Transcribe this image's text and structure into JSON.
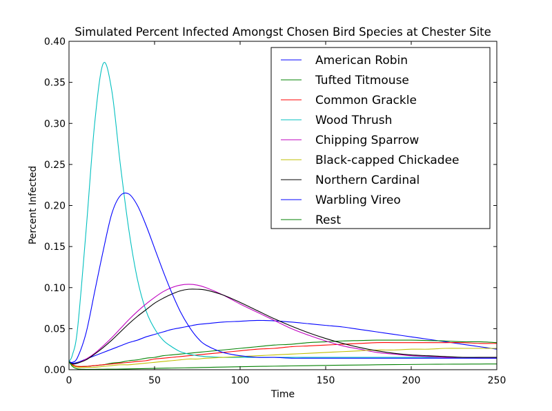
{
  "chart_data": {
    "type": "line",
    "title": "Simulated Percent Infected Amongst Chosen Bird Species at Chester Site",
    "xlabel": "Time",
    "ylabel": "Percent Infected",
    "xlim": [
      0,
      250
    ],
    "ylim": [
      0,
      0.4
    ],
    "xticks": [
      "0",
      "50",
      "100",
      "150",
      "200",
      "250"
    ],
    "yticks": [
      "0.00",
      "0.05",
      "0.10",
      "0.15",
      "0.20",
      "0.25",
      "0.30",
      "0.35",
      "0.40"
    ],
    "grid": false,
    "legend_position": "top-right",
    "x": [
      0,
      2,
      5,
      10,
      15,
      20,
      25,
      30,
      35,
      40,
      45,
      50,
      55,
      60,
      65,
      70,
      75,
      80,
      90,
      100,
      110,
      120,
      130,
      140,
      150,
      160,
      170,
      180,
      190,
      200,
      210,
      220,
      230,
      240,
      250
    ],
    "series": [
      {
        "name": "American Robin",
        "color": "#0000ff",
        "values": [
          0.01,
          0.008,
          0.009,
          0.013,
          0.017,
          0.021,
          0.025,
          0.029,
          0.033,
          0.036,
          0.04,
          0.043,
          0.046,
          0.049,
          0.051,
          0.053,
          0.055,
          0.056,
          0.058,
          0.059,
          0.06,
          0.0595,
          0.058,
          0.056,
          0.054,
          0.052,
          0.049,
          0.046,
          0.043,
          0.04,
          0.037,
          0.034,
          0.031,
          0.028,
          0.025
        ]
      },
      {
        "name": "Tufted Titmouse",
        "color": "#008000",
        "values": [
          0.01,
          0.006,
          0.004,
          0.004,
          0.005,
          0.006,
          0.008,
          0.009,
          0.011,
          0.012,
          0.014,
          0.015,
          0.017,
          0.018,
          0.019,
          0.02,
          0.021,
          0.022,
          0.024,
          0.026,
          0.028,
          0.03,
          0.031,
          0.033,
          0.034,
          0.035,
          0.0355,
          0.036,
          0.036,
          0.036,
          0.0355,
          0.035,
          0.034,
          0.034,
          0.033
        ]
      },
      {
        "name": "Common Grackle",
        "color": "#ff0000",
        "values": [
          0.01,
          0.006,
          0.004,
          0.004,
          0.005,
          0.006,
          0.007,
          0.008,
          0.009,
          0.01,
          0.011,
          0.013,
          0.014,
          0.015,
          0.016,
          0.017,
          0.018,
          0.019,
          0.021,
          0.023,
          0.025,
          0.026,
          0.028,
          0.029,
          0.03,
          0.031,
          0.032,
          0.033,
          0.033,
          0.033,
          0.033,
          0.033,
          0.033,
          0.032,
          0.032
        ]
      },
      {
        "name": "Wood Thrush",
        "color": "#00bfbf",
        "values": [
          0.01,
          0.018,
          0.05,
          0.17,
          0.3,
          0.373,
          0.34,
          0.25,
          0.17,
          0.11,
          0.072,
          0.05,
          0.036,
          0.028,
          0.022,
          0.019,
          0.017,
          0.016,
          0.015,
          0.015,
          0.015,
          0.015,
          0.015,
          0.015,
          0.015,
          0.015,
          0.015,
          0.015,
          0.015,
          0.015,
          0.015,
          0.015,
          0.015,
          0.015,
          0.015
        ]
      },
      {
        "name": "Chipping Sparrow",
        "color": "#bf00bf",
        "values": [
          0.01,
          0.007,
          0.008,
          0.013,
          0.02,
          0.029,
          0.039,
          0.05,
          0.061,
          0.071,
          0.08,
          0.088,
          0.095,
          0.1,
          0.103,
          0.104,
          0.103,
          0.1,
          0.091,
          0.08,
          0.07,
          0.06,
          0.05,
          0.042,
          0.035,
          0.029,
          0.025,
          0.021,
          0.019,
          0.017,
          0.016,
          0.015,
          0.015,
          0.014,
          0.014
        ]
      },
      {
        "name": "Black-capped Chickadee",
        "color": "#bfbf00",
        "values": [
          0.01,
          0.005,
          0.003,
          0.003,
          0.003,
          0.004,
          0.005,
          0.006,
          0.006,
          0.007,
          0.008,
          0.009,
          0.01,
          0.011,
          0.012,
          0.013,
          0.013,
          0.014,
          0.015,
          0.016,
          0.017,
          0.018,
          0.019,
          0.02,
          0.021,
          0.022,
          0.023,
          0.024,
          0.024,
          0.025,
          0.025,
          0.026,
          0.026,
          0.026,
          0.026
        ]
      },
      {
        "name": "Northern Cardinal",
        "color": "#000000",
        "values": [
          0.01,
          0.007,
          0.008,
          0.012,
          0.019,
          0.027,
          0.036,
          0.046,
          0.056,
          0.065,
          0.073,
          0.081,
          0.087,
          0.092,
          0.096,
          0.098,
          0.098,
          0.097,
          0.091,
          0.082,
          0.072,
          0.062,
          0.053,
          0.045,
          0.038,
          0.032,
          0.027,
          0.023,
          0.02,
          0.018,
          0.017,
          0.016,
          0.015,
          0.015,
          0.015
        ]
      },
      {
        "name": "Warbling Vireo",
        "color": "#0000ff",
        "values": [
          0.01,
          0.009,
          0.015,
          0.045,
          0.095,
          0.145,
          0.19,
          0.212,
          0.214,
          0.2,
          0.176,
          0.148,
          0.12,
          0.094,
          0.071,
          0.053,
          0.039,
          0.03,
          0.021,
          0.017,
          0.015,
          0.015,
          0.014,
          0.014,
          0.014,
          0.014,
          0.014,
          0.014,
          0.014,
          0.014,
          0.014,
          0.014,
          0.014,
          0.014,
          0.014
        ]
      },
      {
        "name": "Rest",
        "color": "#008000",
        "values": [
          0.01,
          0.004,
          0.001,
          0.0005,
          0.0005,
          0.0006,
          0.0007,
          0.0008,
          0.001,
          0.0012,
          0.0014,
          0.0016,
          0.0018,
          0.002,
          0.0022,
          0.0024,
          0.0026,
          0.0028,
          0.0032,
          0.0036,
          0.004,
          0.0043,
          0.0046,
          0.0049,
          0.0052,
          0.0055,
          0.0057,
          0.006,
          0.0062,
          0.0064,
          0.0066,
          0.0067,
          0.0068,
          0.0069,
          0.007
        ]
      }
    ]
  }
}
